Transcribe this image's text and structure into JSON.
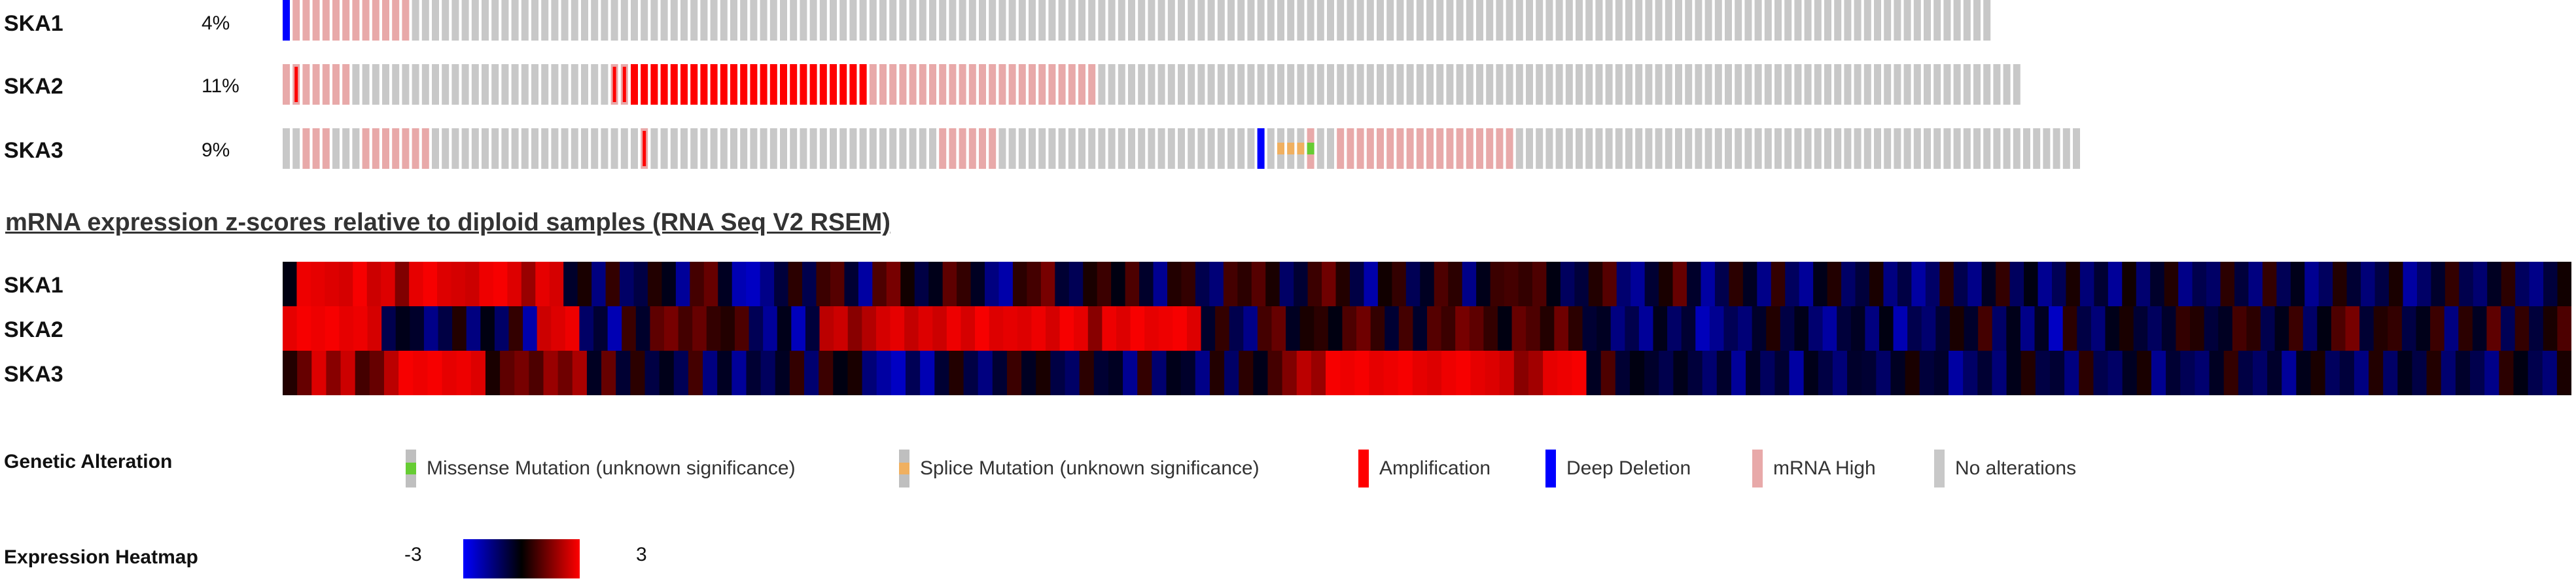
{
  "oncoprint": {
    "genes": [
      {
        "name": "SKA1",
        "percent": "4%",
        "tracks": "DMMMMMMMMMMMMNNNNNNNNNNNNNNNNNNNNNNNNNNNNNNNNNNNNNNNNNNNNNNNNNNNNNNNNNNNNNNNNNNNNNNNNNNNNNNNNNNNNNNNNNNNNNNNNNNNNNNNNNNNNNNNNNNNNNNNNNNNNNNNNNNNNNNNNNNNNNNNNNNNNNNNNNNNNNNN"
      },
      {
        "name": "SKA2",
        "percent": "11%",
        "tracks": "MXMMMMMNNNNNNNNNNNNNNNNNNNNNNNNNNXXAAAAAAAAAAAAAAAAAAAAAAAAMMMMMMMMMMMMMMMMMMMMMMMNNNNNNNNNNNNNNNNNNNNNNNNNNNNNNNNNNNNNNNNNNNNNNNNNNNNNNNNNNNNNNNNNNNNNNNNNNNNNNNNNNNNNNNNNNNNN"
      },
      {
        "name": "SKA3",
        "percent": "9%",
        "tracks": "NNMMMNNNMMMMMMMNNNNNNNNNNNNNNNNNNNNNXNNNNNNNNNNNNNNNNNNNNNNNNNNNNNMMMMMMNNNNNNNNNNNNNNNNNNNNNNNNNNDNSSSMNNMMMMMMMMMMMMMMMMMMNNNNNNNNNNNNNNNNNNNNNNNNNNNNNNNNNNNNNNNNNNNNNNNNNNNNNNNNN"
      }
    ]
  },
  "heatmap": {
    "title": "mRNA expression z-scores relative to diploid samples (RNA Seq V2 RSEM)",
    "genes": [
      {
        "name": "SKA1",
        "values": [
          -0.2,
          2.8,
          2.7,
          2.6,
          2.5,
          2.9,
          2.4,
          2.6,
          1.5,
          2.7,
          2.9,
          2.6,
          2.5,
          2.4,
          2.8,
          2.9,
          2.6,
          1.8,
          2.7,
          2.5,
          -0.5,
          0.3,
          -1.5,
          0.6,
          -1.2,
          -0.8,
          0.4,
          -0.3,
          -1.8,
          0.8,
          1.2,
          -0.4,
          -2.1,
          -2.3,
          -1.6,
          -0.7,
          0.5,
          -0.9,
          0.7,
          1.0,
          -0.6,
          -1.9,
          0.9,
          1.4,
          0.2,
          -0.8,
          -0.3,
          1.1,
          0.6,
          -0.4,
          -1.5,
          -2.0,
          0.5,
          0.8,
          1.4,
          -0.6,
          -1.0,
          0.3,
          0.7,
          -0.2,
          0.9,
          -0.5,
          -1.7,
          0.4,
          0.6,
          -0.9,
          -1.4,
          0.8,
          0.5,
          1.0,
          0.3,
          -1.2,
          -0.6,
          0.7,
          1.3,
          0.4,
          -0.8,
          -2.0,
          0.2,
          0.6,
          -1.0,
          -0.4,
          0.9,
          0.5,
          -1.6,
          -0.3,
          0.7,
          0.8,
          0.6,
          0.9,
          -0.2,
          -1.1,
          -0.7,
          0.4,
          1.0,
          -1.3,
          -1.8,
          -0.6,
          0.3,
          1.2,
          -0.5,
          -1.9,
          -0.9,
          0.5,
          -0.4,
          -1.6,
          0.6,
          -1.1,
          -1.8,
          -0.3,
          0.4,
          -1.2,
          -0.7,
          0.3,
          -1.5,
          -0.8,
          -1.9,
          -1.2,
          0.5,
          -0.9,
          -1.6,
          -0.4,
          0.6,
          -1.1,
          -0.2,
          -1.7,
          -1.0,
          0.3,
          -1.4,
          -0.6,
          -1.8,
          0.2,
          -1.3,
          -0.5,
          0.4,
          -1.6,
          -0.9,
          -1.2,
          0.5,
          -0.7,
          -1.5,
          0.6,
          -1.0,
          -0.3,
          -1.7,
          -1.1,
          0.4,
          -0.6,
          -1.4,
          -0.8,
          0.3,
          -1.9,
          -1.2,
          -0.5,
          0.6,
          -0.9,
          -1.3,
          -0.4,
          0.5,
          -1.1,
          -1.6,
          -0.7,
          0.2
        ],
        "note": "SKA1 row"
      },
      {
        "name": "SKA2",
        "values": [
          2.7,
          2.9,
          2.8,
          2.9,
          2.7,
          2.8,
          2.5,
          -0.9,
          -0.3,
          -0.5,
          -1.6,
          -0.8,
          0.4,
          -1.5,
          -0.2,
          -1.2,
          0.6,
          -2.0,
          2.4,
          2.6,
          2.8,
          -1.2,
          -0.6,
          -2.1,
          0.7,
          -0.5,
          1.1,
          1.4,
          0.8,
          1.2,
          0.6,
          0.4,
          0.9,
          -1.0,
          -1.8,
          -0.3,
          -2.2,
          -0.7,
          2.2,
          2.4,
          1.6,
          2.1,
          2.5,
          2.7,
          2.3,
          2.6,
          2.4,
          2.8,
          2.5,
          2.9,
          2.6,
          2.7,
          2.6,
          2.8,
          2.5,
          2.9,
          2.7,
          1.6,
          2.8,
          2.6,
          2.9,
          2.7,
          2.8,
          2.9,
          2.6,
          -0.5,
          0.6,
          -0.9,
          -1.6,
          0.8,
          1.2,
          -0.4,
          0.3,
          0.5,
          -0.2,
          0.9,
          1.3,
          0.6,
          -0.6,
          0.8,
          -0.5,
          1.0,
          0.7,
          1.4,
          1.1,
          0.6,
          -0.2,
          1.2,
          0.9,
          0.4,
          1.3,
          0.5,
          -0.6,
          -0.4,
          -1.5,
          -0.9,
          -1.8,
          -0.3,
          -1.2,
          -0.6,
          -2.2,
          -1.7,
          -1.0,
          -1.4,
          -0.5,
          0.4,
          -0.8,
          -0.3,
          -1.3,
          -1.9,
          -0.7,
          -0.4,
          -1.5,
          -0.2,
          -2.1,
          -0.9,
          -1.3,
          -0.6,
          0.3,
          -0.5,
          0.8,
          -1.2,
          -0.3,
          -1.6,
          -0.4,
          -2.3,
          0.5,
          -0.8,
          -1.4,
          -0.3,
          0.3,
          -0.6,
          -1.1,
          -0.5,
          0.6,
          0.4,
          -0.7,
          -0.4,
          0.8,
          0.5,
          -0.9,
          -0.3,
          0.7,
          -1.2,
          -0.2,
          0.9,
          1.4,
          -0.6,
          0.4,
          0.6,
          -0.8,
          -0.3,
          0.7,
          -1.5,
          0.5,
          -0.4,
          1.1,
          -1.0,
          0.6,
          -0.7,
          0.3,
          0.9
        ],
        "note": "SKA2 row"
      },
      {
        "name": "SKA3",
        "values": [
          0.4,
          1.2,
          2.6,
          1.6,
          2.4,
          0.8,
          1.2,
          2.2,
          2.9,
          2.8,
          2.9,
          2.7,
          2.8,
          2.6,
          0.3,
          1.1,
          1.4,
          0.9,
          1.8,
          1.3,
          2.0,
          -0.4,
          1.2,
          -0.6,
          0.5,
          -0.8,
          -0.3,
          -1.0,
          0.8,
          -1.5,
          -0.4,
          -1.8,
          -0.6,
          -1.1,
          -0.4,
          0.6,
          -1.3,
          0.7,
          -0.2,
          0.3,
          -1.4,
          -1.9,
          -2.3,
          -1.0,
          -2.1,
          -0.6,
          0.4,
          -0.8,
          -1.5,
          -0.6,
          0.7,
          -0.4,
          0.3,
          -0.8,
          -1.2,
          0.5,
          -0.6,
          -0.4,
          -1.7,
          0.6,
          -1.3,
          -0.3,
          -0.5,
          -1.6,
          0.4,
          -1.2,
          0.5,
          -0.3,
          0.8,
          1.5,
          2.2,
          1.8,
          2.9,
          2.8,
          2.9,
          2.7,
          2.8,
          2.9,
          2.7,
          2.6,
          2.8,
          2.9,
          2.7,
          2.6,
          2.4,
          1.6,
          1.9,
          2.7,
          2.8,
          2.9,
          -0.4,
          0.9,
          -0.6,
          -0.2,
          -0.5,
          -0.9,
          -0.3,
          -0.7,
          -1.3,
          -0.5,
          -1.8,
          -0.4,
          -1.1,
          -0.6,
          -1.9,
          -0.3,
          -0.8,
          -1.4,
          -0.5,
          -0.6,
          -1.2,
          -0.4,
          0.3,
          -0.7,
          -0.5,
          -1.9,
          -1.2,
          -0.6,
          -1.4,
          -0.3,
          0.4,
          -0.8,
          -0.6,
          -1.5,
          0.5,
          -0.9,
          -1.2,
          -0.4,
          0.3,
          -1.7,
          -0.6,
          -1.0,
          -1.3,
          -0.4,
          0.6,
          -0.8,
          -1.2,
          -0.5,
          -1.8,
          -0.3,
          0.3,
          -1.1,
          -0.7,
          -1.5,
          0.4,
          -1.2,
          -0.3,
          -0.8,
          0.4,
          -1.3,
          -0.5,
          -0.9,
          -1.6,
          0.5,
          -0.2,
          -0.9,
          -1.4,
          0.3
        ],
        "note": "SKA3 row"
      }
    ]
  },
  "legend": {
    "genetic_alteration_title": "Genetic Alteration",
    "items": [
      {
        "label": "Missense Mutation (unknown significance)",
        "color": "#bfbfbf",
        "mark_color": "#66cc33"
      },
      {
        "label": "Splice Mutation (unknown significance)",
        "color": "#bfbfbf",
        "mark_color": "#f0b060"
      },
      {
        "label": "Amplification",
        "color": "#ff0000"
      },
      {
        "label": "Deep Deletion",
        "color": "#0000ff"
      },
      {
        "label": "mRNA High",
        "color": "#e8a9a9"
      },
      {
        "label": "No alterations",
        "color": "#c8c8c8"
      }
    ],
    "expression_heatmap_title": "Expression Heatmap",
    "expression_min": "-3",
    "expression_max": "3"
  },
  "colors": {
    "no_alteration": "#c8c8c8",
    "mrna_high": "#e8a9a9",
    "amplification": "#ff0000",
    "deep_deletion": "#0000ff",
    "missense": "#66cc33",
    "splice": "#f0b060"
  }
}
